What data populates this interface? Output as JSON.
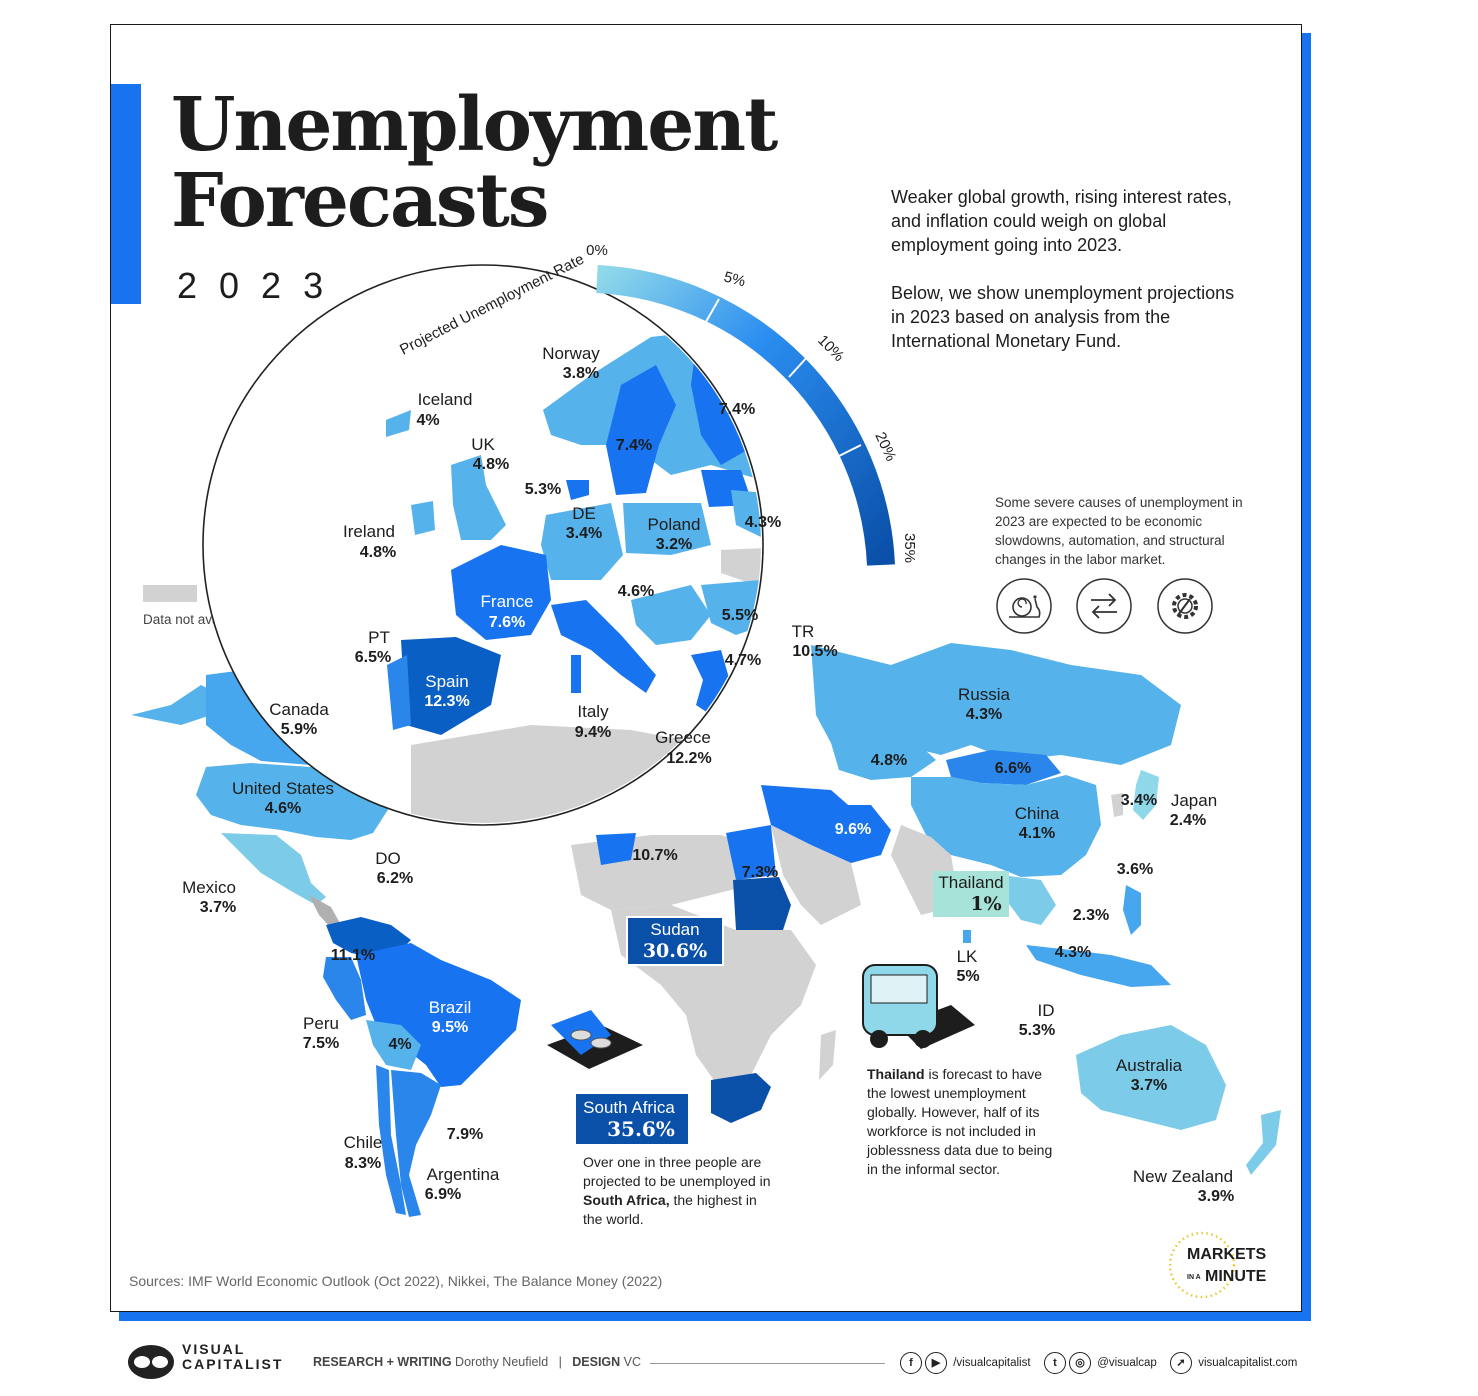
{
  "header": {
    "title_line1": "Unemployment",
    "title_line2": "Forecasts",
    "year": "2023"
  },
  "intro": {
    "p1": "Weaker global growth, rising interest rates, and inflation could weigh on global employment going into 2023.",
    "p2": "Below, we show unemployment projections in 2023 based on analysis from the International Monetary Fund."
  },
  "scale": {
    "title": "Projected Unemployment Rate",
    "ticks": [
      "0%",
      "5%",
      "10%",
      "20%",
      "35%"
    ]
  },
  "legend": {
    "na_label": "Data not available."
  },
  "causes": {
    "text": "Some severe causes of unemployment in 2023 are expected to be economic slowdowns, automation, and structural changes in the labor market.",
    "icons": [
      "snail-icon",
      "arrows-exchange-icon",
      "gear-wrench-icon"
    ]
  },
  "colors": {
    "accent": "#1773f0",
    "scale_low": "#7fd3e6",
    "scale_high": "#0a4fa8",
    "not_available": "#d2d2d2"
  },
  "europe": [
    {
      "name": "Norway",
      "value": "3.8%"
    },
    {
      "name": "Iceland",
      "value": "4%"
    },
    {
      "name": "UK",
      "value": "4.8%"
    },
    {
      "name": "Ireland",
      "value": "4.8%"
    },
    {
      "name": "DE",
      "value": "3.4%"
    },
    {
      "name": "Poland",
      "value": "3.2%"
    },
    {
      "name": "France",
      "value": "7.6%"
    },
    {
      "name": "PT",
      "value": "6.5%"
    },
    {
      "name": "Spain",
      "value": "12.3%"
    },
    {
      "name": "Italy",
      "value": "9.4%"
    },
    {
      "name": "Greece",
      "value": "12.2%"
    },
    {
      "name": "TR",
      "value": "10.5%"
    },
    {
      "name": "",
      "value": "7.4%"
    },
    {
      "name": "",
      "value": "7.4%"
    },
    {
      "name": "",
      "value": "5.3%"
    },
    {
      "name": "",
      "value": "4.3%"
    },
    {
      "name": "",
      "value": "4.6%"
    },
    {
      "name": "",
      "value": "5.5%"
    },
    {
      "name": "",
      "value": "4.7%"
    }
  ],
  "world": [
    {
      "name": "Canada",
      "value": "5.9%"
    },
    {
      "name": "United States",
      "value": "4.6%"
    },
    {
      "name": "Mexico",
      "value": "3.7%"
    },
    {
      "name": "DO",
      "value": "6.2%"
    },
    {
      "name": "",
      "value": "11.1%"
    },
    {
      "name": "Brazil",
      "value": "9.5%"
    },
    {
      "name": "Peru",
      "value": "7.5%"
    },
    {
      "name": "",
      "value": "4%"
    },
    {
      "name": "Chile",
      "value": "8.3%"
    },
    {
      "name": "",
      "value": "7.9%"
    },
    {
      "name": "Argentina",
      "value": "6.9%"
    },
    {
      "name": "Russia",
      "value": "4.3%"
    },
    {
      "name": "",
      "value": "4.8%"
    },
    {
      "name": "",
      "value": "6.6%"
    },
    {
      "name": "China",
      "value": "4.1%"
    },
    {
      "name": "Japan",
      "value": "2.4%"
    },
    {
      "name": "",
      "value": "3.4%"
    },
    {
      "name": "",
      "value": "3.6%"
    },
    {
      "name": "",
      "value": "9.6%"
    },
    {
      "name": "",
      "value": "10.7%"
    },
    {
      "name": "",
      "value": "7.3%"
    },
    {
      "name": "Sudan",
      "value": "30.6%"
    },
    {
      "name": "Thailand",
      "value": "1%"
    },
    {
      "name": "",
      "value": "2.3%"
    },
    {
      "name": "",
      "value": "4.3%"
    },
    {
      "name": "LK",
      "value": "5%"
    },
    {
      "name": "ID",
      "value": "5.3%"
    },
    {
      "name": "Australia",
      "value": "3.7%"
    },
    {
      "name": "New Zealand",
      "value": "3.9%"
    },
    {
      "name": "South Africa",
      "value": "35.6%"
    }
  ],
  "callouts": {
    "south_africa": {
      "pre": "Over one in three people are projected to be unemployed in ",
      "bold": "South Africa,",
      "post": " the highest in the world."
    },
    "thailand": {
      "bold": "Thailand",
      "post": " is forecast to have the lowest unemployment globally. However, half of its workforce is not included in joblessness data due to being in the informal sector."
    }
  },
  "sources": "Sources: IMF World Economic Outlook (Oct 2022), Nikkei, The Balance Money (2022)",
  "brand": {
    "mim_line1": "MARKETS",
    "mim_small": "IN A",
    "mim_line2": "MINUTE",
    "vc_line1": "VISUAL",
    "vc_line2": "CAPITALIST"
  },
  "footer": {
    "research_label": "RESEARCH + WRITING",
    "research_name": "Dorothy Neufield",
    "sep": "|",
    "design_label": "DESIGN",
    "design_name": "VC",
    "social1": "/visualcapitalist",
    "social2": "@visualcap",
    "site": "visualcapitalist.com"
  }
}
